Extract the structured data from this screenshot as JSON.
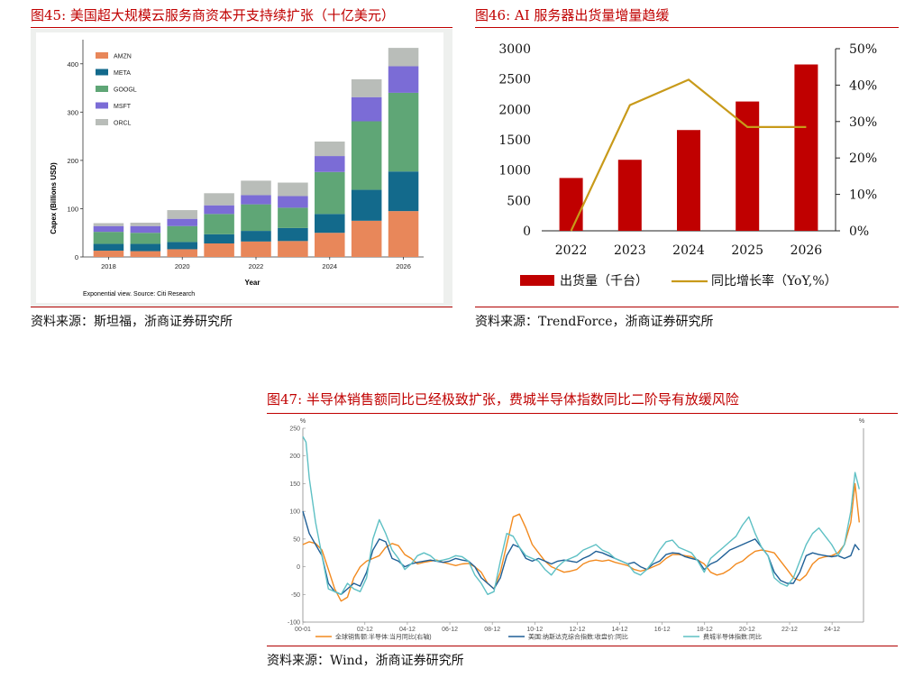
{
  "figure45": {
    "title": "图45:   美国超大规模云服务商资本开支持续扩张（十亿美元）",
    "source": "资料来源：斯坦福，浙商证券研究所",
    "note": "Exponential view. Source: Citi Research",
    "chart_data": {
      "type": "bar",
      "stacked": true,
      "xlabel": "Year",
      "ylabel": "Capex (Billions USD)",
      "ylim": [
        0,
        450
      ],
      "yticks": [
        0,
        100,
        200,
        300,
        400
      ],
      "categories": [
        "2018",
        "2019",
        "2020",
        "2021",
        "2022",
        "2023",
        "2024",
        "2025",
        "2026"
      ],
      "xtick_labels": [
        "2018",
        "",
        "2020",
        "",
        "2022",
        "",
        "2024",
        "",
        "2026"
      ],
      "legend_position": "top-left",
      "series": [
        {
          "name": "AMZN",
          "color": "#e8875a",
          "values": [
            13,
            12,
            16,
            28,
            32,
            33,
            50,
            75,
            95
          ]
        },
        {
          "name": "META",
          "color": "#136a8c",
          "values": [
            14,
            15,
            15,
            19,
            22,
            27,
            39,
            64,
            82
          ]
        },
        {
          "name": "GOOGL",
          "color": "#5fa676",
          "values": [
            25,
            23,
            33,
            42,
            55,
            42,
            87,
            142,
            163
          ]
        },
        {
          "name": "MSFT",
          "color": "#7b6cd6",
          "values": [
            12,
            14,
            15,
            18,
            19,
            24,
            33,
            50,
            55
          ]
        },
        {
          "name": "ORCL",
          "color": "#b9bdb9",
          "values": [
            6,
            7,
            18,
            25,
            30,
            28,
            30,
            37,
            38
          ]
        }
      ]
    }
  },
  "figure46": {
    "title": "图46:   AI 服务器出货量增量趋缓",
    "source": "资料来源：TrendForce，浙商证券研究所",
    "chart_data": {
      "type": "bar",
      "categories": [
        "2022",
        "2023",
        "2024",
        "2025",
        "2026"
      ],
      "ylim": [
        0,
        3000
      ],
      "yticks": [
        0,
        500,
        1000,
        1500,
        2000,
        2500,
        3000
      ],
      "y2lim": [
        0,
        50
      ],
      "y2ticks": [
        "0%",
        "10%",
        "20%",
        "30%",
        "40%",
        "50%"
      ],
      "legend_position": "bottom",
      "series": [
        {
          "name": "出货量（千台）",
          "type": "bar",
          "color": "#c00000",
          "values": [
            870,
            1170,
            1660,
            2130,
            2740
          ]
        },
        {
          "name": "同比增长率（YoY,%）",
          "type": "line",
          "axis": "right",
          "color": "#c89a1a",
          "values": [
            0,
            34.5,
            41.5,
            28.5,
            28.5
          ]
        }
      ]
    }
  },
  "figure47": {
    "title": "图47:   半导体销售额同比已经极致扩张，费城半导体指数同比二阶导有放缓风险",
    "source": "资料来源：Wind，浙商证券研究所",
    "chart_data": {
      "type": "line",
      "ylim": [
        -100,
        250
      ],
      "yticks": [
        -100,
        -50,
        0,
        50,
        100,
        150,
        200,
        250
      ],
      "ylabel": "%",
      "y2label": "%",
      "xlim": [
        2000,
        2026.4
      ],
      "xtick_labels": [
        "00-01",
        "02-12",
        "04-12",
        "06-12",
        "08-12",
        "10-12",
        "12-12",
        "14-12",
        "16-12",
        "18-12",
        "20-12",
        "22-12",
        "24-12"
      ],
      "xticks": [
        2000,
        2002.92,
        2004.92,
        2006.92,
        2008.92,
        2010.92,
        2012.92,
        2014.92,
        2016.92,
        2018.92,
        2020.92,
        2022.92,
        2024.92
      ],
      "legend_position": "bottom",
      "series": [
        {
          "name": "全球销售额:半导体:当月同比(右轴)",
          "color": "#f28a1f",
          "x": [
            2000,
            2000.3,
            2000.6,
            2000.9,
            2001.2,
            2001.5,
            2001.8,
            2002.1,
            2002.4,
            2002.7,
            2003.0,
            2003.3,
            2003.6,
            2003.9,
            2004.2,
            2004.5,
            2004.8,
            2005.1,
            2005.4,
            2005.7,
            2006.0,
            2006.3,
            2006.6,
            2006.9,
            2007.2,
            2007.5,
            2007.8,
            2008.1,
            2008.4,
            2008.7,
            2009.0,
            2009.3,
            2009.6,
            2009.9,
            2010.2,
            2010.5,
            2010.8,
            2011.1,
            2011.4,
            2011.7,
            2012.0,
            2012.3,
            2012.6,
            2012.9,
            2013.2,
            2013.5,
            2013.8,
            2014.1,
            2014.4,
            2014.7,
            2015.0,
            2015.3,
            2015.6,
            2015.9,
            2016.2,
            2016.5,
            2016.8,
            2017.1,
            2017.4,
            2017.7,
            2018.0,
            2018.3,
            2018.6,
            2018.9,
            2019.2,
            2019.5,
            2019.8,
            2020.1,
            2020.4,
            2020.7,
            2021.0,
            2021.3,
            2021.6,
            2021.9,
            2022.2,
            2022.5,
            2022.8,
            2023.1,
            2023.4,
            2023.7,
            2024.0,
            2024.3,
            2024.6,
            2024.9,
            2025.2,
            2025.5,
            2025.8,
            2026.0,
            2026.2
          ],
          "y": [
            40,
            45,
            42,
            30,
            -5,
            -40,
            -62,
            -55,
            -20,
            0,
            10,
            15,
            20,
            35,
            42,
            38,
            22,
            15,
            5,
            8,
            10,
            12,
            8,
            5,
            2,
            5,
            6,
            0,
            -10,
            -30,
            -40,
            -10,
            40,
            90,
            95,
            70,
            40,
            25,
            10,
            0,
            -5,
            -10,
            -8,
            -5,
            5,
            10,
            12,
            10,
            12,
            8,
            5,
            2,
            -5,
            -8,
            -5,
            0,
            5,
            15,
            22,
            22,
            20,
            18,
            12,
            5,
            -10,
            -15,
            -12,
            -5,
            5,
            10,
            20,
            28,
            30,
            28,
            25,
            10,
            -5,
            -20,
            -25,
            -15,
            5,
            15,
            18,
            20,
            25,
            40,
            80,
            150,
            80
          ]
        },
        {
          "name": "美国:纳斯达克综合指数:收盘价:同比",
          "color": "#1f5f96",
          "x": [
            2000,
            2000.3,
            2000.6,
            2000.9,
            2001.2,
            2001.5,
            2001.8,
            2002.1,
            2002.4,
            2002.7,
            2003.0,
            2003.3,
            2003.6,
            2003.9,
            2004.2,
            2004.5,
            2004.8,
            2005.1,
            2005.4,
            2005.7,
            2006.0,
            2006.3,
            2006.6,
            2006.9,
            2007.2,
            2007.5,
            2007.8,
            2008.1,
            2008.4,
            2008.7,
            2009.0,
            2009.3,
            2009.6,
            2009.9,
            2010.2,
            2010.5,
            2010.8,
            2011.1,
            2011.4,
            2011.7,
            2012.0,
            2012.3,
            2012.6,
            2012.9,
            2013.2,
            2013.5,
            2013.8,
            2014.1,
            2014.4,
            2014.7,
            2015.0,
            2015.3,
            2015.6,
            2015.9,
            2016.2,
            2016.5,
            2016.8,
            2017.1,
            2017.4,
            2017.7,
            2018.0,
            2018.3,
            2018.6,
            2018.9,
            2019.2,
            2019.5,
            2019.8,
            2020.1,
            2020.4,
            2020.7,
            2021.0,
            2021.3,
            2021.6,
            2021.9,
            2022.2,
            2022.5,
            2022.8,
            2023.1,
            2023.4,
            2023.7,
            2024.0,
            2024.3,
            2024.6,
            2024.9,
            2025.2,
            2025.5,
            2025.8,
            2026.0,
            2026.2
          ],
          "y": [
            100,
            60,
            40,
            20,
            -30,
            -45,
            -50,
            -40,
            -30,
            -35,
            -10,
            30,
            50,
            45,
            15,
            10,
            0,
            5,
            8,
            10,
            12,
            10,
            8,
            10,
            15,
            12,
            10,
            0,
            -20,
            -30,
            -40,
            -20,
            20,
            40,
            35,
            15,
            10,
            15,
            10,
            5,
            10,
            12,
            10,
            8,
            15,
            20,
            28,
            25,
            20,
            15,
            10,
            5,
            8,
            0,
            -5,
            5,
            10,
            22,
            25,
            24,
            18,
            15,
            12,
            -5,
            5,
            10,
            20,
            30,
            35,
            40,
            45,
            50,
            35,
            20,
            -10,
            -25,
            -30,
            -30,
            -10,
            20,
            25,
            22,
            20,
            18,
            20,
            15,
            20,
            40,
            30
          ]
        },
        {
          "name": "费城半导体指数:同比",
          "color": "#5ec0c4",
          "x": [
            2000,
            2000.15,
            2000.3,
            2000.6,
            2000.9,
            2001.2,
            2001.5,
            2001.8,
            2002.1,
            2002.4,
            2002.7,
            2003.0,
            2003.3,
            2003.6,
            2003.9,
            2004.2,
            2004.5,
            2004.8,
            2005.1,
            2005.4,
            2005.7,
            2006.0,
            2006.3,
            2006.6,
            2006.9,
            2007.2,
            2007.5,
            2007.8,
            2008.1,
            2008.4,
            2008.7,
            2009.0,
            2009.3,
            2009.6,
            2009.9,
            2010.2,
            2010.5,
            2010.8,
            2011.1,
            2011.4,
            2011.7,
            2012.0,
            2012.3,
            2012.6,
            2012.9,
            2013.2,
            2013.5,
            2013.8,
            2014.1,
            2014.4,
            2014.7,
            2015.0,
            2015.3,
            2015.6,
            2015.9,
            2016.2,
            2016.5,
            2016.8,
            2017.1,
            2017.4,
            2017.7,
            2018.0,
            2018.3,
            2018.6,
            2018.9,
            2019.2,
            2019.5,
            2019.8,
            2020.1,
            2020.4,
            2020.7,
            2021.0,
            2021.3,
            2021.6,
            2021.9,
            2022.2,
            2022.5,
            2022.8,
            2023.1,
            2023.4,
            2023.7,
            2024.0,
            2024.3,
            2024.6,
            2024.9,
            2025.2,
            2025.5,
            2025.8,
            2026.0,
            2026.2
          ],
          "y": [
            235,
            225,
            160,
            80,
            20,
            -40,
            -45,
            -50,
            -30,
            -40,
            -45,
            -20,
            50,
            85,
            60,
            30,
            15,
            -5,
            5,
            20,
            25,
            20,
            10,
            12,
            15,
            20,
            18,
            10,
            -15,
            -30,
            -50,
            -45,
            10,
            60,
            55,
            35,
            20,
            15,
            10,
            -5,
            -15,
            0,
            10,
            15,
            20,
            30,
            35,
            40,
            30,
            25,
            15,
            10,
            5,
            -10,
            -15,
            -5,
            10,
            30,
            45,
            48,
            35,
            30,
            25,
            10,
            -10,
            15,
            25,
            35,
            45,
            55,
            75,
            90,
            60,
            35,
            20,
            -20,
            -30,
            -35,
            -20,
            10,
            40,
            60,
            70,
            55,
            40,
            20,
            40,
            100,
            170,
            140
          ]
        }
      ]
    }
  }
}
